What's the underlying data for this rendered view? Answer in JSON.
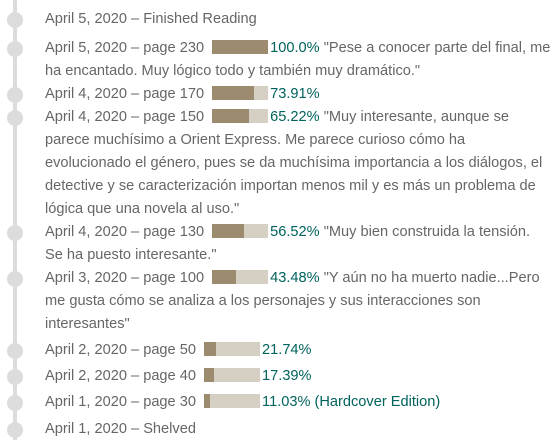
{
  "entries": [
    {
      "date": "April 5, 2020",
      "action": "Finished Reading",
      "page": null,
      "percent": null,
      "percent_label": "",
      "comment": "",
      "edition": ""
    },
    {
      "date": "April 5, 2020",
      "action": "",
      "page": "page 230",
      "percent": 100.0,
      "percent_label": "100.0%",
      "comment": "\"Pese a conocer parte del final, me ha encantado. Muy lógico todo y también muy dramático.\"",
      "edition": ""
    },
    {
      "date": "April 4, 2020",
      "action": "",
      "page": "page 170",
      "percent": 73.91,
      "percent_label": "73.91%",
      "comment": "",
      "edition": ""
    },
    {
      "date": "April 4, 2020",
      "action": "",
      "page": "page 150",
      "percent": 65.22,
      "percent_label": "65.22%",
      "comment": "\"Muy interesante, aunque se parece muchísimo a Orient Express. Me parece curioso cómo ha evolucionado el género, pues se da muchísima importancia a los diálogos, el detective y se caracterización importan menos mil y es más un problema de lógica que una novela al uso.\"",
      "edition": ""
    },
    {
      "date": "April 4, 2020",
      "action": "",
      "page": "page 130",
      "percent": 56.52,
      "percent_label": "56.52%",
      "comment": "\"Muy bien construida la tensión. Se ha puesto interesante.\"",
      "edition": ""
    },
    {
      "date": "April 3, 2020",
      "action": "",
      "page": "page 100",
      "percent": 43.48,
      "percent_label": "43.48%",
      "comment": "\"Y aún no ha muerto nadie...Pero me gusta cómo se analiza a los personajes y sus interacciones son interesantes\"",
      "edition": ""
    },
    {
      "date": "April 2, 2020",
      "action": "",
      "page": "page 50",
      "percent": 21.74,
      "percent_label": "21.74%",
      "comment": "",
      "edition": ""
    },
    {
      "date": "April 2, 2020",
      "action": "",
      "page": "page 40",
      "percent": 17.39,
      "percent_label": "17.39%",
      "comment": "",
      "edition": ""
    },
    {
      "date": "April 1, 2020",
      "action": "",
      "page": "page 30",
      "percent": 11.03,
      "percent_label": "11.03%",
      "comment": "",
      "edition": "(Hardcover Edition)"
    },
    {
      "date": "April 1, 2020",
      "action": "Shelved",
      "page": null,
      "percent": null,
      "percent_label": "",
      "comment": "",
      "edition": ""
    }
  ],
  "separator": "–",
  "colors": {
    "bar_fill": "#9c8b6f",
    "bar_track": "#d6d0c4",
    "percent_text": "#00635d",
    "timeline": "#dcdcdc",
    "text": "#666666"
  }
}
